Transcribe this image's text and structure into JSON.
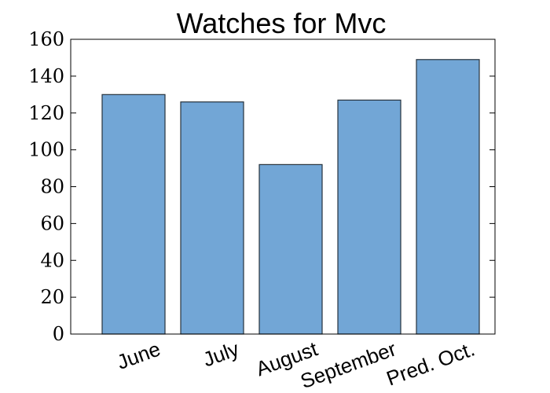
{
  "chart_data": {
    "type": "bar",
    "title": "Watches for Mvc",
    "xlabel": "",
    "ylabel": "",
    "categories": [
      "June",
      "July",
      "August",
      "September",
      "Pred. Oct."
    ],
    "values": [
      130,
      126,
      92,
      127,
      149
    ],
    "ylim": [
      0,
      160
    ],
    "yticks": [
      0,
      20,
      40,
      60,
      80,
      100,
      120,
      140,
      160
    ],
    "xtick_rotation_deg": -20,
    "grid": false,
    "bar_color": "#72a6d6",
    "bar_edge_color": "#26323d"
  }
}
